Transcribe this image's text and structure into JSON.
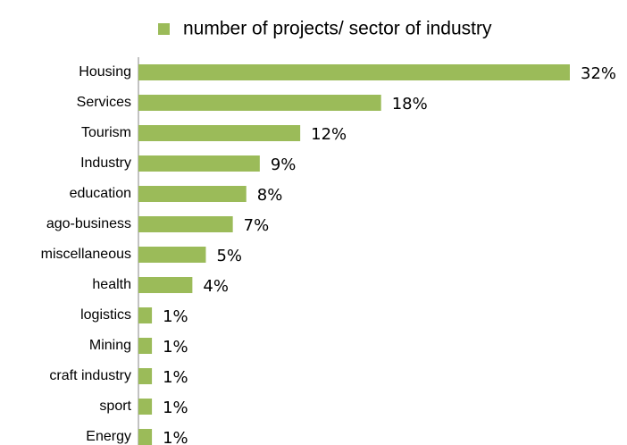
{
  "chart_data": {
    "type": "barh",
    "categories": [
      "Housing",
      "Services",
      "Tourism",
      "Industry",
      "education",
      "ago-business",
      "miscellaneous",
      "health",
      "logistics",
      "Mining",
      "craft industry",
      "sport",
      "Energy"
    ],
    "series": [
      {
        "name": "number of projects/ sector of industry",
        "color": "#9bbb59",
        "values": [
          32,
          18,
          12,
          9,
          8,
          7,
          5,
          4,
          1,
          1,
          1,
          1,
          1
        ],
        "value_labels": [
          "32%",
          "18%",
          "12%",
          "9%",
          "8%",
          "7%",
          "5%",
          "4%",
          "1%",
          "1%",
          "1%",
          "1%",
          "1%"
        ]
      }
    ],
    "xlim": [
      0,
      32
    ],
    "legend": "top"
  }
}
